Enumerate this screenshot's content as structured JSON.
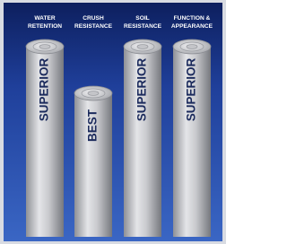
{
  "columns": [
    {
      "header": [
        "WATER",
        "RETENTION"
      ],
      "label": "SUPERIOR"
    },
    {
      "header": [
        "CRUSH",
        "RESISTANCE"
      ],
      "label": "BEST"
    },
    {
      "header": [
        "SOIL",
        "RESISTANCE"
      ],
      "label": "SUPERIOR"
    },
    {
      "header": [
        "FUNCTION &",
        "APPEARANCE"
      ],
      "label": "SUPERIOR"
    }
  ]
}
